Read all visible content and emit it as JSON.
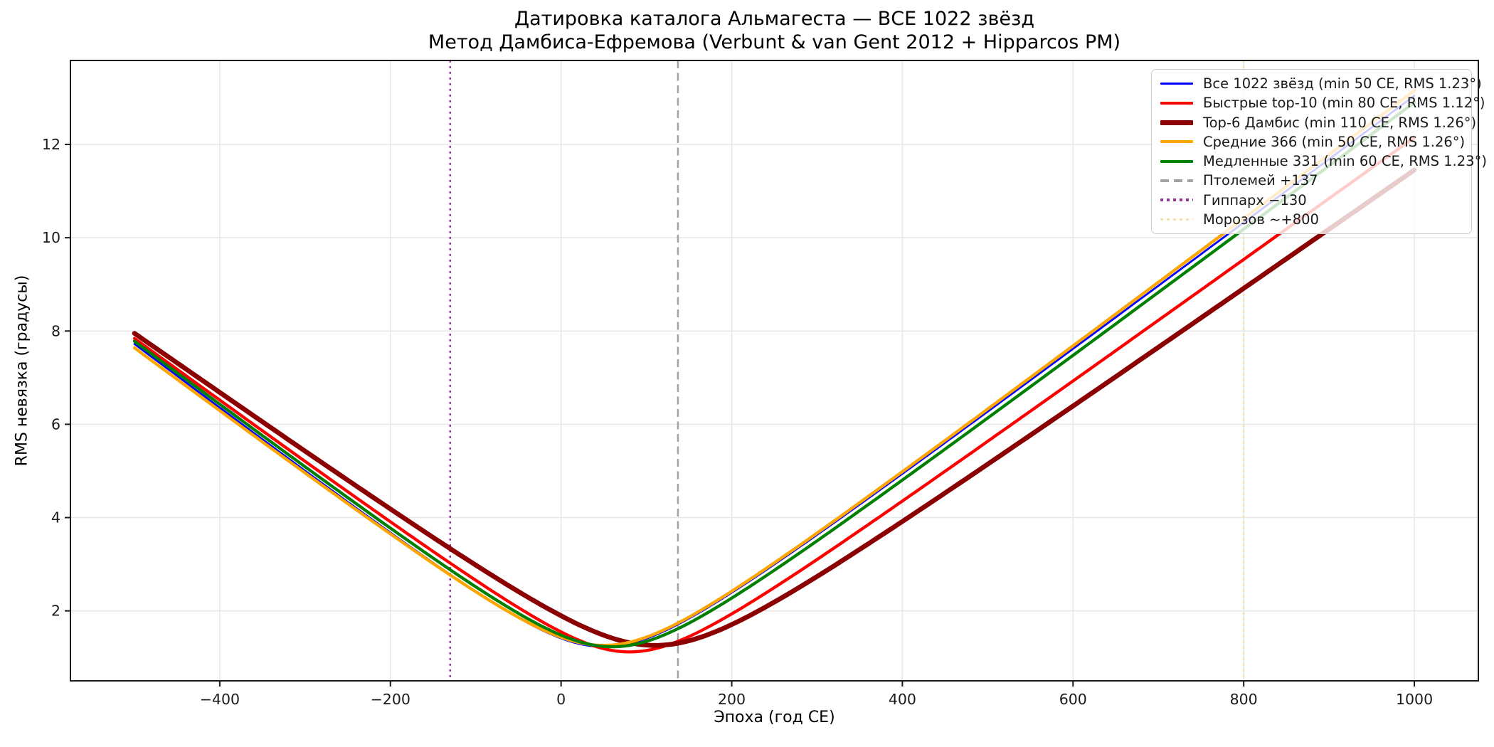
{
  "title": {
    "line1": "Датировка каталога Альмагеста — ВСЕ 1022 звёзд",
    "line2": "Метод Дамбиса-Ефремова (Verbunt & van Gent 2012 + Hipparcos PM)"
  },
  "chart_data": {
    "type": "line",
    "title": "Датировка каталога Альмагеста — ВСЕ 1022 звёзд",
    "subtitle": "Метод Дамбиса-Ефремова (Verbunt & van Gent 2012 + Hipparcos PM)",
    "xlabel": "Эпоха (год CE)",
    "ylabel": "RMS невязка (градусы)",
    "xlim": [
      -575,
      1075
    ],
    "ylim": [
      0.5,
      13.8
    ],
    "x_ticks": [
      -400,
      -200,
      0,
      200,
      400,
      600,
      800,
      1000
    ],
    "x_tick_labels": [
      "−400",
      "−200",
      "0",
      "200",
      "400",
      "600",
      "800",
      "1000"
    ],
    "y_ticks": [
      2,
      4,
      6,
      8,
      10,
      12
    ],
    "y_tick_labels": [
      "2",
      "4",
      "6",
      "8",
      "10",
      "12"
    ],
    "grid": true,
    "grid_color": "#e7e7e7",
    "legend_position": "upper right",
    "x_data_range": [
      -500,
      1000
    ],
    "samples_x": [
      -500,
      -250,
      0,
      250,
      500,
      750,
      1000
    ],
    "series": [
      {
        "name": "all-1022",
        "label": "Все 1022 звёзд (min 50 CE, RMS 1.23°)",
        "color": "#0000ff",
        "linewidth": 2.8,
        "style": "solid",
        "t_min": 50,
        "rms_min": 1.23,
        "slope_left": 0.01386,
        "slope_right": 0.01367,
        "samples_rms": [
          7.72,
          4.34,
          1.41,
          3.0,
          6.27,
          9.65,
          13.05
        ]
      },
      {
        "name": "fast-top-10",
        "label": "Быстрые top-10 (min 80 CE, RMS 1.12°)",
        "color": "#ff0000",
        "linewidth": 4.3,
        "style": "solid",
        "t_min": 80,
        "rms_min": 1.12,
        "slope_left": 0.01338,
        "slope_right": 0.01315,
        "samples_rms": [
          7.84,
          4.56,
          1.55,
          2.5,
          5.63,
          8.88,
          12.15
        ]
      },
      {
        "name": "top-6-dambis",
        "label": "Top-6 Дамбис (min 110 CE, RMS 1.26°)",
        "color": "#8b0000",
        "linewidth": 6.7,
        "style": "solid",
        "t_min": 110,
        "rms_min": 1.26,
        "slope_left": 0.01287,
        "slope_right": 0.01279,
        "samples_rms": [
          7.95,
          4.8,
          1.89,
          2.19,
          5.14,
          8.28,
          11.45
        ]
      },
      {
        "name": "medium-366",
        "label": "Средние 366 (min 50 CE, RMS 1.26°)",
        "color": "#ffa500",
        "linewidth": 4.3,
        "style": "solid",
        "t_min": 50,
        "rms_min": 1.26,
        "slope_left": 0.0137,
        "slope_right": 0.01378,
        "samples_rms": [
          7.64,
          4.3,
          1.43,
          3.03,
          6.33,
          9.73,
          13.15
        ]
      },
      {
        "name": "slow-331",
        "label": "Медленные 331 (min 60 CE, RMS 1.23°)",
        "color": "#008000",
        "linewidth": 4.3,
        "style": "solid",
        "t_min": 60,
        "rms_min": 1.23,
        "slope_left": 0.01372,
        "slope_right": 0.01366,
        "samples_rms": [
          7.78,
          4.43,
          1.48,
          2.87,
          6.13,
          9.5,
          12.9
        ]
      }
    ],
    "reference_lines": [
      {
        "name": "ptolemy",
        "label": "Птолемей +137",
        "x": 137,
        "color": "#a3a3a3",
        "style": "dashed",
        "linewidth": 2.5
      },
      {
        "name": "hipparchus",
        "label": "Гиппарх −130",
        "x": -130,
        "color": "#943494",
        "style": "dotted",
        "linewidth": 2.5
      },
      {
        "name": "morozov",
        "label": "Морозов ~+800",
        "x": 800,
        "color": "#fadeaa",
        "style": "dotted",
        "linewidth": 2.5
      }
    ]
  }
}
